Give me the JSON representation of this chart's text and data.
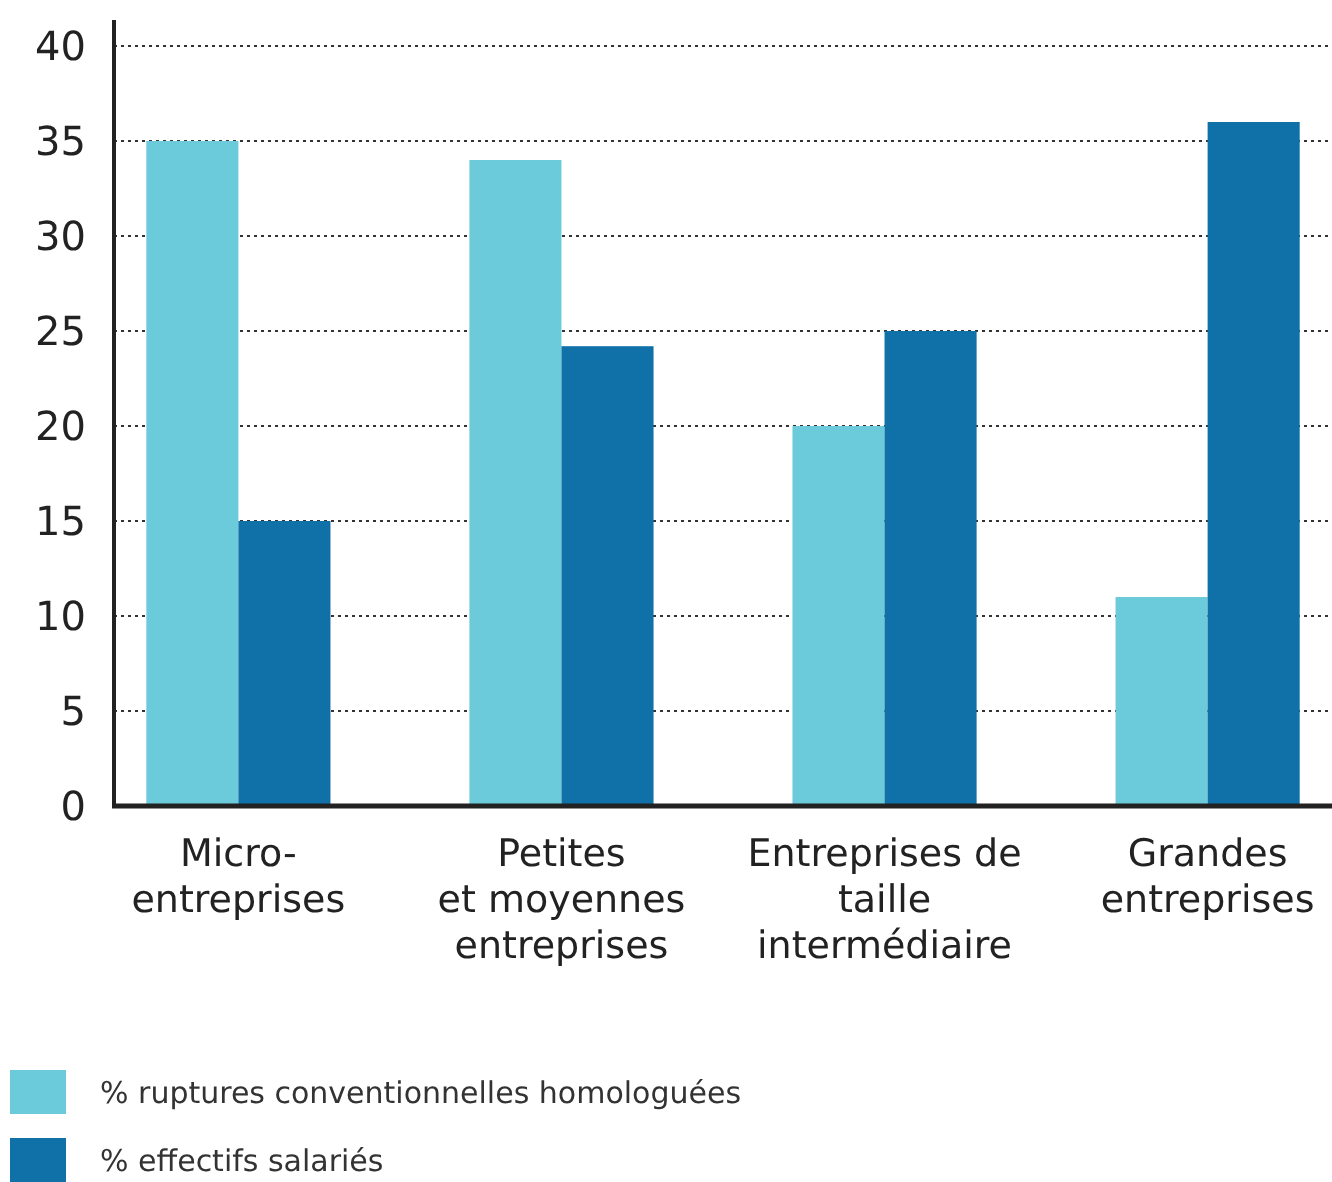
{
  "chart_data": {
    "type": "bar",
    "categories": [
      "Micro-\nentreprises",
      "Petites\net moyennes\nentreprises",
      "Entreprises de\ntaille\nintermédiaire",
      "Grandes\nentreprises"
    ],
    "series": [
      {
        "name": "%  ruptures conventionnelles homologuées",
        "color": "#6ccbdb",
        "values": [
          35,
          34,
          20,
          11
        ]
      },
      {
        "name": "% effectifs salariés",
        "color": "#0f71a7",
        "values": [
          15,
          24.2,
          25,
          36
        ]
      }
    ],
    "ylim": [
      0,
      40
    ],
    "yticks": [
      0,
      5,
      10,
      15,
      20,
      25,
      30,
      35,
      40
    ],
    "grid": "y",
    "legend": "bottom left"
  }
}
